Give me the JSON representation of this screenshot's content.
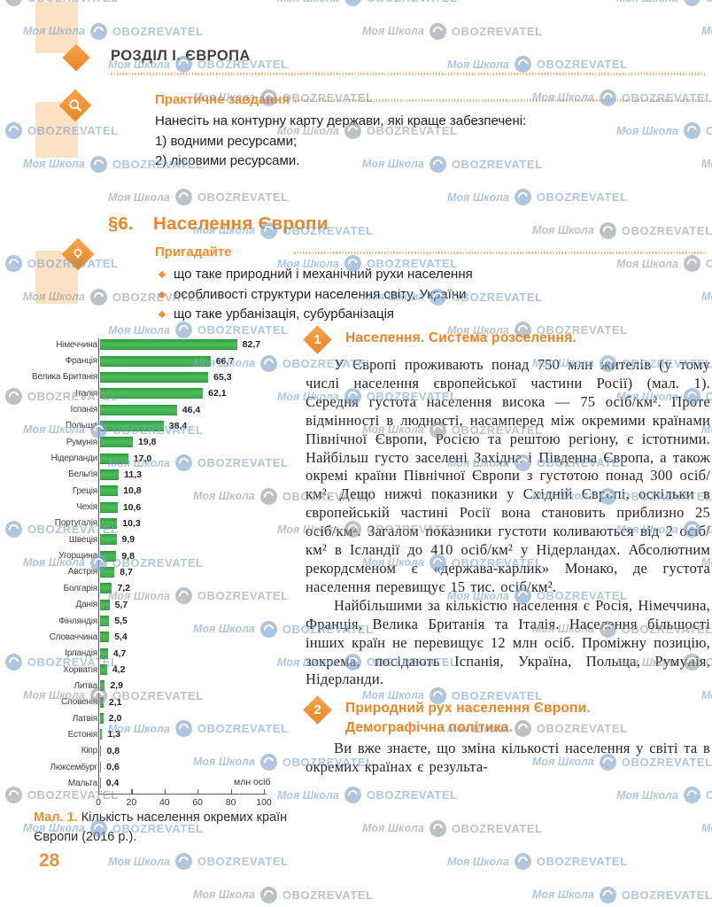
{
  "page": {
    "chapter": "РОЗДІЛ І. ЄВРОПА",
    "number": "28"
  },
  "watermark": {
    "school": "Моя Школа",
    "brand": "OBOZREVATEL"
  },
  "icons": {
    "chapter_marker": "solid-diamond",
    "practical_marker": "magnifier-icon",
    "recall_marker": "lightbulb-icon",
    "watermark_logo": "obozrevatel-circle-bird-icon"
  },
  "colors": {
    "accent_orange": "#ef8c2e",
    "peach_block": "#fbe2c4",
    "bar_green": "#3fae4b",
    "watermark_blue": "#7aa0c8",
    "watermark_gray": "#8a8f95"
  },
  "practical": {
    "title": "Практичне завдання",
    "intro": "Нанесіть на контурну карту держави, які краще забезпечені:",
    "items": [
      "1) водними ресурсами;",
      "2) лісовими ресурсами."
    ]
  },
  "section": {
    "number": "§6.",
    "title": "Населення Європи",
    "recall": {
      "title": "Пригадайте",
      "items": [
        "що таке природний і механічний рухи населення",
        "особливості структури населення світу, України",
        "що таке урбанізація, субурбанізація"
      ]
    }
  },
  "chart_data": {
    "type": "bar",
    "orientation": "horizontal",
    "title": "",
    "xlabel": "млн осіб",
    "ylabel": "",
    "xlim": [
      0,
      100
    ],
    "x_ticks": [
      0,
      20,
      40,
      60,
      80,
      100
    ],
    "grid": false,
    "bar_color": "#3fae4b",
    "categories": [
      "Німеччина",
      "Франція",
      "Велика Британія",
      "Італія",
      "Іспанія",
      "Польща",
      "Румунія",
      "Нідерланди",
      "Бельгія",
      "Греція",
      "Чехія",
      "Португалія",
      "Швеція",
      "Угорщина",
      "Австрія",
      "Болгарія",
      "Данія",
      "Фінляндія",
      "Словаччина",
      "Ірландія",
      "Хорватія",
      "Литва",
      "Словенія",
      "Латвія",
      "Естонія",
      "Кіпр",
      "Люксембург",
      "Мальта"
    ],
    "values": [
      82.7,
      66.7,
      65.3,
      62.1,
      46.4,
      38.4,
      19.8,
      17.0,
      11.3,
      10.8,
      10.6,
      10.3,
      9.9,
      9.8,
      8.7,
      7.2,
      5.7,
      5.5,
      5.4,
      4.7,
      4.2,
      2.9,
      2.1,
      2.0,
      1.3,
      0.8,
      0.6,
      0.4
    ],
    "value_labels": [
      "82,7",
      "66,7",
      "65,3",
      "62,1",
      "46,4",
      "38,4",
      "19,8",
      "17,0",
      "11,3",
      "10,8",
      "10,6",
      "10,3",
      "9,9",
      "9,8",
      "8,7",
      "7,2",
      "5,7",
      "5,5",
      "5,4",
      "4,7",
      "4,2",
      "2,9",
      "2,1",
      "2,0",
      "1,3",
      "0,8",
      "0,6",
      "0,4"
    ]
  },
  "figure": {
    "label": "Мал. 1.",
    "text": "Кількість населення окремих країн Європи (2016 р.)."
  },
  "articles": [
    {
      "num": "1",
      "title_lines": [
        "Населення. Система розселення."
      ],
      "paragraphs": [
        "У Європі проживають понад 750 млн жителів (у тому числі населення європейської частини Росії) (мал. 1). Середня густота населення висока — 75 осіб/км². Проте відмінності в людності, насамперед між окремими країнами Північної Європи, Росією та рештою регіону, є істотними. Найбільш густо заселені Західна і Південна Європа, а також окремі країни Північної Європи з густотою понад 300 осіб/км². Дещо нижчі показники у Східній Європі, оскільки в європейській частині Росії вона становить приблизно 25 осіб/км². Загалом показники густоти коливаються від 2 осіб/км² в Ісландії до 410 осіб/км² у Нідерландах. Абсолютним рекордсменом є «держава-карлик» Монако, де густота населення перевищує 15 тис. осіб/км².",
        "Найбільшими за кількістю населення є Росія, Німеччина, Франція, Велика Британія та Італія. Населення більшості інших країн не перевищує 12 млн осіб. Проміжну позицію, зокрема, посідають Іспанія, Україна, Польща, Румунія, Нідерланди."
      ]
    },
    {
      "num": "2",
      "title_lines": [
        "Природний рух населення Європи.",
        "Демографічна політика."
      ],
      "paragraphs": [
        "Ви вже знаєте, що зміна кількості населення у світі та в окремих країнах є результа-"
      ]
    }
  ]
}
